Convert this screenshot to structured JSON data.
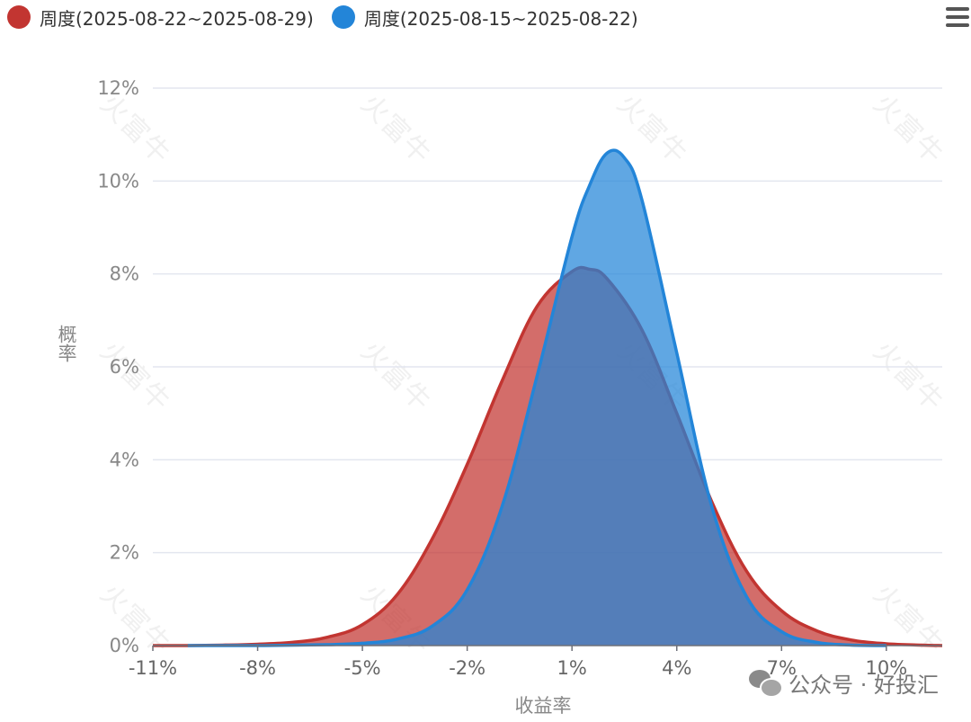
{
  "legend": {
    "items": [
      {
        "label": "周度(2025-08-22~2025-08-29)",
        "color": "#c23531"
      },
      {
        "label": "周度(2025-08-15~2025-08-22)",
        "color": "#2385d8"
      }
    ]
  },
  "watermark": {
    "text": "火富牛",
    "footer": "公众号 · 好投汇"
  },
  "chart_data": {
    "type": "area",
    "xlabel": "收益率",
    "ylabel": "概率",
    "xlim": [
      -11,
      11.6
    ],
    "ylim": [
      0,
      12
    ],
    "x_ticks": [
      "-11%",
      "-8%",
      "-5%",
      "-2%",
      "1%",
      "4%",
      "7%",
      "10%"
    ],
    "y_ticks": [
      "0%",
      "2%",
      "4%",
      "6%",
      "8%",
      "10%",
      "12%"
    ],
    "grid": true,
    "legend_position": "top-left",
    "series": [
      {
        "name": "周度(2025-08-22~2025-08-29)",
        "color": "#c23531",
        "fill": "rgba(194,53,49,0.72)",
        "x": [
          -11,
          -10,
          -9,
          -8,
          -7,
          -6,
          -5,
          -4,
          -3,
          -2,
          -1,
          0,
          1,
          1.5,
          2,
          3,
          4,
          5,
          6,
          7,
          8,
          9,
          10,
          11,
          11.6
        ],
        "y": [
          0.0,
          0.0,
          0.01,
          0.03,
          0.07,
          0.18,
          0.45,
          1.1,
          2.3,
          3.9,
          5.7,
          7.3,
          8.05,
          8.1,
          7.9,
          6.8,
          5.0,
          3.1,
          1.6,
          0.75,
          0.32,
          0.12,
          0.04,
          0.01,
          0.0
        ]
      },
      {
        "name": "周度(2025-08-15~2025-08-22)",
        "color": "#2385d8",
        "fill": "rgba(35,133,216,0.72)",
        "x": [
          -10,
          -8,
          -6,
          -5,
          -4,
          -3,
          -2,
          -1,
          0,
          1,
          1.5,
          2,
          2.5,
          3,
          4,
          5,
          6,
          7,
          8,
          9,
          10
        ],
        "y": [
          0.0,
          0.0,
          0.02,
          0.05,
          0.14,
          0.42,
          1.2,
          3.0,
          5.8,
          8.8,
          9.9,
          10.6,
          10.5,
          9.6,
          6.3,
          3.0,
          1.05,
          0.3,
          0.07,
          0.01,
          0.0
        ]
      }
    ]
  }
}
